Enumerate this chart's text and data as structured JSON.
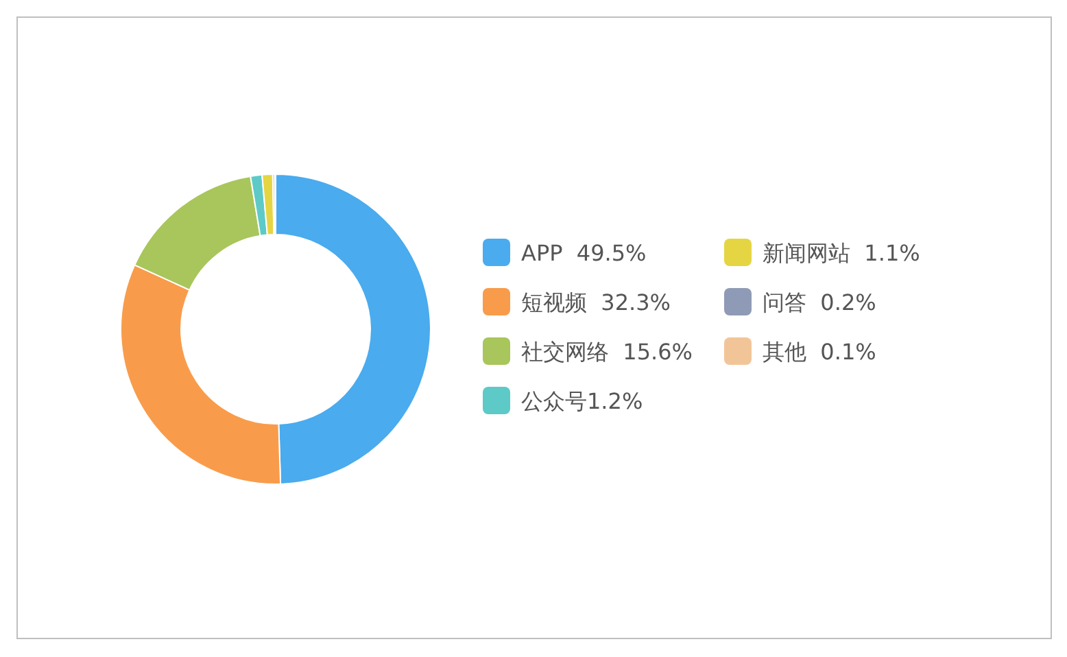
{
  "chart_data": {
    "type": "donut",
    "categories": [
      "APP  49.5%",
      "短视频  32.3%",
      "社交网络  15.6%",
      "公众号1.2%",
      "新闻网站  1.1%",
      "问答  0.2%",
      "其他  0.1%"
    ],
    "values": [
      49.5,
      32.3,
      15.6,
      1.2,
      1.1,
      0.2,
      0.1
    ],
    "colors": [
      "#4aabee",
      "#f89c4b",
      "#a8c65b",
      "#5dcac7",
      "#e5d543",
      "#8f9bb6",
      "#f2c598"
    ],
    "legend": "right"
  }
}
